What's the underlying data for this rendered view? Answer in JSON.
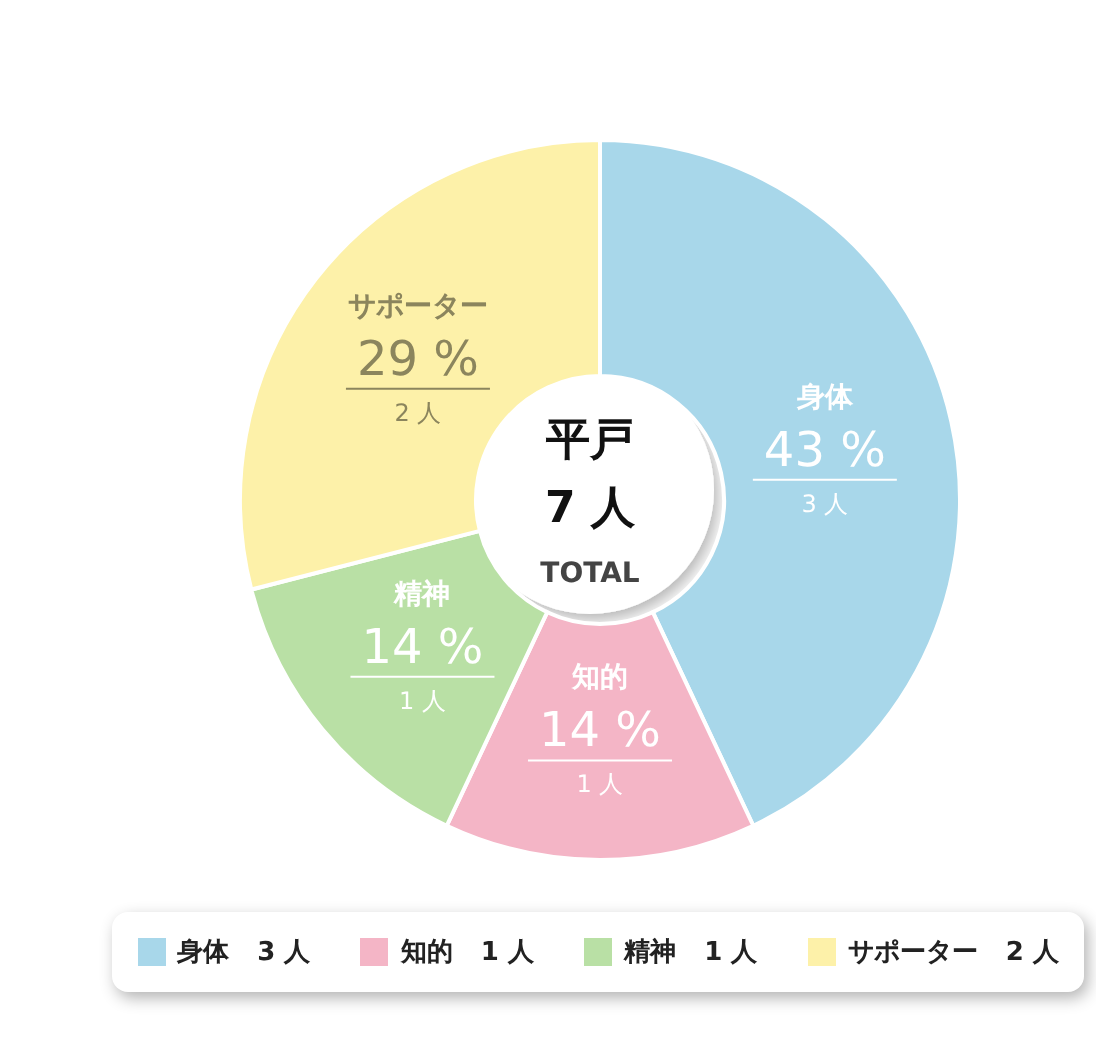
{
  "chart_data": {
    "type": "donut",
    "title": "平戸",
    "categories": [
      "身体",
      "知的",
      "精神",
      "サポーター"
    ],
    "values": [
      43,
      14,
      14,
      29
    ],
    "colors": [
      "#a8d7ea",
      "#f4b5c6",
      "#b9e0a5",
      "#fdf1a9"
    ],
    "value_labels": [
      "43 %",
      "14 %",
      "14 %",
      "29 %"
    ],
    "annotations": [
      {
        "text": "3 人",
        "x": "身体"
      },
      {
        "text": "1 人",
        "x": "知的"
      },
      {
        "text": "1 人",
        "x": "精神"
      },
      {
        "text": "2 人",
        "x": "サポーター"
      },
      "7 人",
      "TOTAL"
    ],
    "legend": "bottom"
  }
}
